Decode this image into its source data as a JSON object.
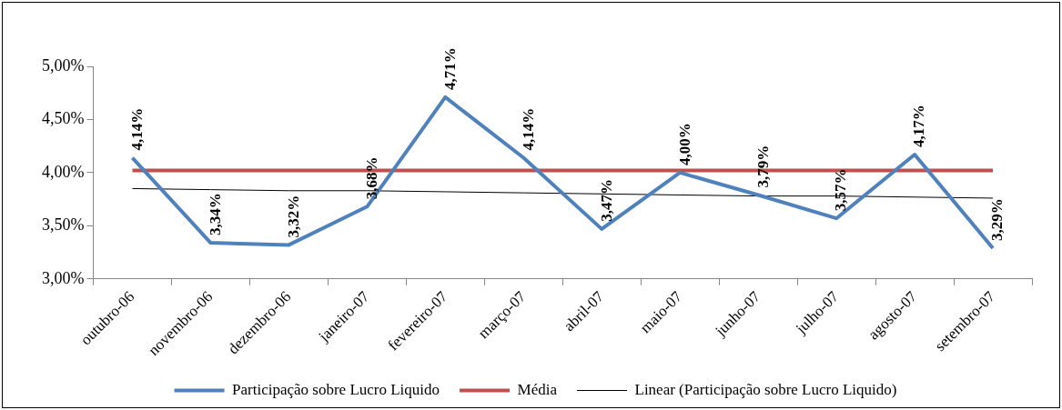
{
  "chart_data": {
    "type": "line",
    "categories": [
      "outubro-06",
      "novembro-06",
      "dezembro-06",
      "janeiro-07",
      "fevereiro-07",
      "março-07",
      "abril-07",
      "maio-07",
      "junho-07",
      "julho-07",
      "agosto-07",
      "setembro-07"
    ],
    "series": [
      {
        "name": "Participação sobre Lucro Liquido",
        "color": "#4f81bd",
        "values": [
          4.14,
          3.34,
          3.32,
          3.68,
          4.71,
          4.14,
          3.47,
          4.0,
          3.79,
          3.57,
          4.17,
          3.29
        ],
        "value_labels": [
          "4,14%",
          "3,34%",
          "3,32%",
          "3,68%",
          "4,71%",
          "4,14%",
          "3,47%",
          "4,00%",
          "3,79%",
          "3,57%",
          "4,17%",
          "3,29%"
        ]
      },
      {
        "name": "Média",
        "color": "#c0504d",
        "values": [
          4.02,
          4.02,
          4.02,
          4.02,
          4.02,
          4.02,
          4.02,
          4.02,
          4.02,
          4.02,
          4.02,
          4.02
        ]
      },
      {
        "name": "Linear (Participação sobre Lucro Liquido)",
        "color": "#000000",
        "values": [
          3.85,
          3.84,
          3.83,
          3.83,
          3.82,
          3.81,
          3.8,
          3.79,
          3.78,
          3.78,
          3.77,
          3.76
        ]
      }
    ],
    "ylim": [
      3,
      5
    ],
    "yticks": [
      {
        "value": 3,
        "label": "3,00%"
      },
      {
        "value": 3.5,
        "label": "3,50%"
      },
      {
        "value": 4,
        "label": "4,00%"
      },
      {
        "value": 4.5,
        "label": "4,50%"
      },
      {
        "value": 5,
        "label": "5,00%"
      }
    ],
    "grid": false,
    "legend": "bottom",
    "marker": "none",
    "line_style": "solid"
  }
}
